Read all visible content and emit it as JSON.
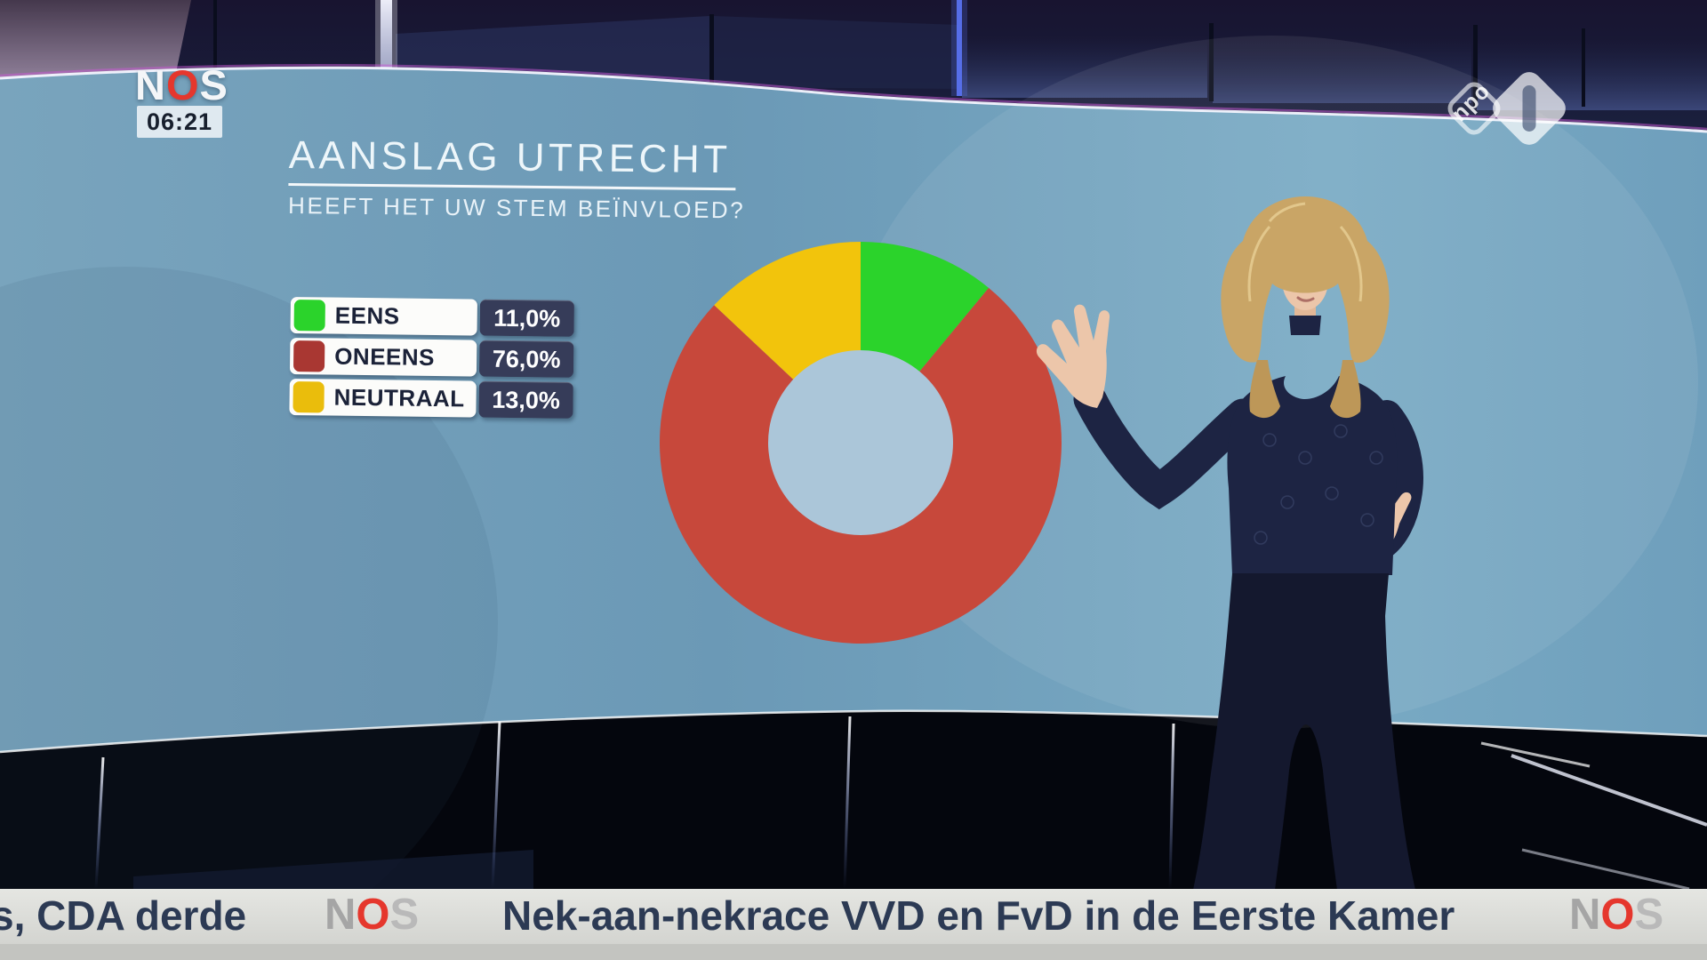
{
  "header": {
    "nos": [
      "N",
      "O",
      "S"
    ],
    "clock": "06:21"
  },
  "npo": {
    "text": "npo",
    "channel": "1"
  },
  "graphic": {
    "title": "AANSLAG UTRECHT",
    "subtitle": "HEEFT HET UW STEM BEÏNVLOED?",
    "legend": [
      {
        "label": "EENS",
        "value": "11,0%",
        "color": "#2bd32b"
      },
      {
        "label": "ONEENS",
        "value": "76,0%",
        "color": "#a93732"
      },
      {
        "label": "NEUTRAAL",
        "value": "13,0%",
        "color": "#eabd0c"
      }
    ]
  },
  "chart_data": {
    "type": "pie",
    "subtype": "donut",
    "title": "AANSLAG UTRECHT",
    "question": "HEEFT HET UW STEM BEÏNVLOED?",
    "categories": [
      "EENS",
      "ONEENS",
      "NEUTRAAL"
    ],
    "values": [
      11.0,
      76.0,
      13.0
    ],
    "value_labels": [
      "11,0%",
      "76,0%",
      "13,0%"
    ],
    "colors": [
      "#2bd32b",
      "#c7483b",
      "#f2c40c"
    ],
    "hole_color": "#abc6d9",
    "start_angle_deg": 0,
    "direction": "clockwise",
    "legend_position": "left"
  },
  "ticker": {
    "left_text": "s, CDA derde",
    "headline": "Nek-aan-nekrace VVD en FvD in de Eerste Kamer",
    "nos": [
      "N",
      "O",
      "S"
    ]
  },
  "palette": {
    "nos_red": "#e5372d",
    "screen_blue": "#6f9dba",
    "ticker_text": "#2c3a54",
    "legend_value_bg": "#363c59"
  }
}
